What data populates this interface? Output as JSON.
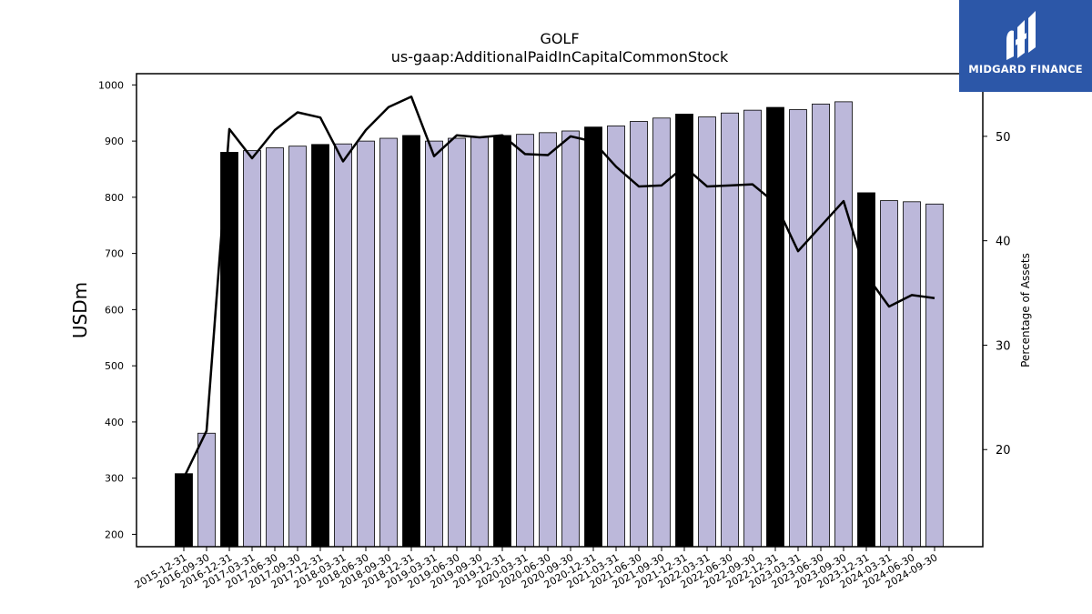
{
  "brand": {
    "name": "MIDGARD FINANCE",
    "bg_color": "#2c57a8"
  },
  "chart_data": {
    "type": "bar",
    "title": "GOLF",
    "subtitle": "us-gaap:AdditionalPaidInCapitalCommonStock",
    "ylabel": "USDm",
    "y2label": "Percentage of Assets",
    "ylim": [
      178,
      1020
    ],
    "y2lim": [
      10.7,
      56.0
    ],
    "yticks": [
      200,
      300,
      400,
      500,
      600,
      700,
      800,
      900,
      1000
    ],
    "y2ticks": [
      20,
      30,
      40,
      50
    ],
    "categories": [
      "2015-12-31",
      "2016-09-30",
      "2016-12-31",
      "2017-03-31",
      "2017-06-30",
      "2017-09-30",
      "2017-12-31",
      "2018-03-31",
      "2018-06-30",
      "2018-09-30",
      "2018-12-31",
      "2019-03-31",
      "2019-06-30",
      "2019-09-30",
      "2019-12-31",
      "2020-03-31",
      "2020-06-30",
      "2020-09-30",
      "2020-12-31",
      "2021-03-31",
      "2021-06-30",
      "2021-09-30",
      "2021-12-31",
      "2022-03-31",
      "2022-06-30",
      "2022-09-30",
      "2022-12-31",
      "2023-03-31",
      "2023-06-30",
      "2023-09-30",
      "2023-12-31",
      "2024-03-31",
      "2024-06-30",
      "2024-09-30"
    ],
    "series": [
      {
        "type": "bar",
        "values": [
          308,
          380,
          880,
          883,
          888,
          891,
          894,
          895,
          900,
          905,
          910,
          900,
          905,
          907,
          910,
          912,
          915,
          918,
          925,
          927,
          935,
          941,
          948,
          943,
          950,
          955,
          960,
          956,
          966,
          970,
          808,
          794,
          792,
          788
        ],
        "year_end_color": "#000000",
        "quarter_color": "#bcb8da",
        "highlight": [
          true,
          false,
          true,
          false,
          false,
          false,
          true,
          false,
          false,
          false,
          true,
          false,
          false,
          false,
          true,
          false,
          false,
          false,
          true,
          false,
          false,
          false,
          true,
          false,
          false,
          false,
          true,
          false,
          false,
          false,
          true,
          false,
          false,
          false
        ]
      },
      {
        "type": "line",
        "axis": "right",
        "color": "#000000",
        "values": [
          17.3,
          21.8,
          50.7,
          47.9,
          50.6,
          52.3,
          51.8,
          47.6,
          50.6,
          52.8,
          53.8,
          48.1,
          50.1,
          49.9,
          50.1,
          48.3,
          48.2,
          50.0,
          49.5,
          47.1,
          45.2,
          45.3,
          47.1,
          45.2,
          45.3,
          45.4,
          43.6,
          39.0,
          41.4,
          43.8,
          36.7,
          33.7,
          34.8,
          34.5
        ]
      }
    ],
    "grid": false
  }
}
